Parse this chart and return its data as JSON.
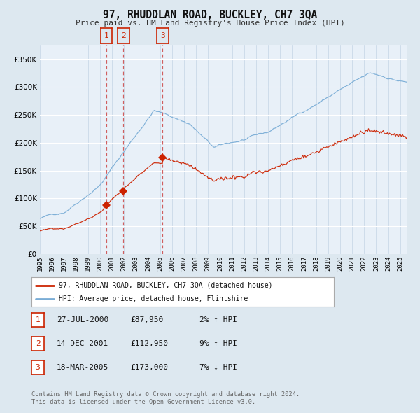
{
  "title": "97, RHUDDLAN ROAD, BUCKLEY, CH7 3QA",
  "subtitle": "Price paid vs. HM Land Registry's House Price Index (HPI)",
  "legend_line1": "97, RHUDDLAN ROAD, BUCKLEY, CH7 3QA (detached house)",
  "legend_line2": "HPI: Average price, detached house, Flintshire",
  "transactions": [
    {
      "num": 1,
      "date": "27-JUL-2000",
      "price": 87950,
      "pct": "2%",
      "dir": "↑"
    },
    {
      "num": 2,
      "date": "14-DEC-2001",
      "price": 112950,
      "pct": "9%",
      "dir": "↑"
    },
    {
      "num": 3,
      "date": "18-MAR-2005",
      "price": 173000,
      "pct": "7%",
      "dir": "↓"
    }
  ],
  "footnote1": "Contains HM Land Registry data © Crown copyright and database right 2024.",
  "footnote2": "This data is licensed under the Open Government Licence v3.0.",
  "hpi_color": "#7aadd6",
  "price_color": "#cc2200",
  "marker_color": "#cc2200",
  "vline_color": "#cc4444",
  "bg_color": "#dde8f0",
  "plot_bg": "#e8f0f8",
  "grid_color": "#ffffff",
  "ylim": [
    0,
    375000
  ],
  "yticks": [
    0,
    50000,
    100000,
    150000,
    200000,
    250000,
    300000,
    350000
  ],
  "start_year": 1995,
  "end_year": 2025,
  "sale_dates": [
    2000.54,
    2001.96,
    2005.21
  ],
  "sale_prices": [
    87950,
    112950,
    173000
  ]
}
